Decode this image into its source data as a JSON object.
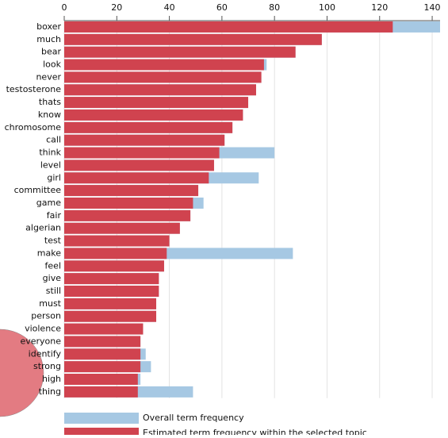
{
  "chart_data": {
    "type": "bar",
    "orientation": "horizontal",
    "categories": [
      "boxer",
      "much",
      "bear",
      "look",
      "never",
      "testosterone",
      "thats",
      "know",
      "chromosome",
      "call",
      "think",
      "level",
      "girl",
      "committee",
      "game",
      "fair",
      "algerian",
      "test",
      "make",
      "feel",
      "give",
      "still",
      "must",
      "person",
      "violence",
      "everyone",
      "identify",
      "strong",
      "high",
      "thing"
    ],
    "series": [
      {
        "name": "Overall term frequency",
        "color": "#a6c8e3",
        "values": [
          143,
          98,
          88,
          77,
          75,
          73,
          70,
          68,
          64,
          61,
          80,
          57,
          74,
          51,
          53,
          48,
          44,
          40,
          87,
          38,
          36,
          36,
          35,
          35,
          30,
          29,
          31,
          33,
          29,
          49
        ]
      },
      {
        "name": "Estimated term frequency within the selected topic",
        "color": "#d0434f",
        "values": [
          125,
          98,
          88,
          76,
          75,
          73,
          70,
          68,
          64,
          61,
          59,
          57,
          55,
          51,
          49,
          48,
          44,
          40,
          39,
          38,
          36,
          36,
          35,
          35,
          30,
          29,
          29,
          29,
          28,
          28
        ]
      }
    ],
    "xlim": [
      0,
      143
    ],
    "xticks": [
      0,
      20,
      40,
      60,
      80,
      100,
      120,
      140
    ],
    "grid": true
  }
}
